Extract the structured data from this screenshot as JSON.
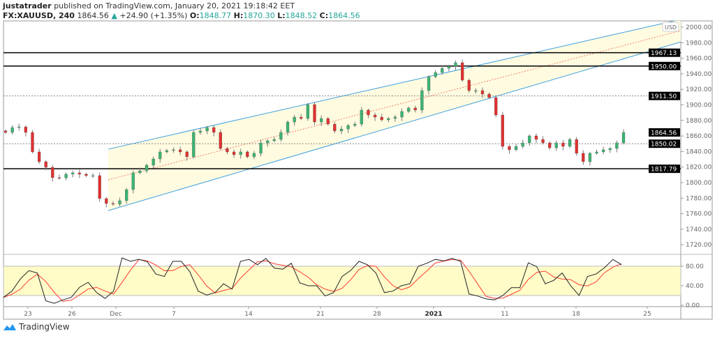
{
  "header": {
    "publisher": "justatrader",
    "published_text": "published on TradingView.com, January 20, 2021 19:18:42 EET",
    "symbol": "FX:XAUUSD, 240",
    "last": "1864.56",
    "change": "+24.90 (+1.35%)",
    "open_label": "O:",
    "open": "1848.77",
    "high_label": "H:",
    "high": "1870.30",
    "low_label": "L:",
    "low": "1848.52",
    "close_label": "C:",
    "close": "1864.56",
    "change_icon": "triangle-up-icon"
  },
  "footer": {
    "brand": "TradingView",
    "logo_icon": "tradingview-cloud-icon"
  },
  "colors": {
    "up": "#26a69a",
    "candle_up": "#3cb371",
    "candle_down": "#e0312f",
    "channel": "#3c9fe0",
    "channel_fill": "#fffbe0",
    "stoch_k": "#222222",
    "stoch_d": "#ff3b2f",
    "band": "#fffcc8"
  },
  "chart_data": {
    "type": "candlestick",
    "currency_label": "USD",
    "price_ylim": [
      1700,
      2005
    ],
    "price_ticks": [
      "2000.00",
      "1980.00",
      "1960.00",
      "1940.00",
      "1920.00",
      "1900.00",
      "1880.00",
      "1860.00",
      "1840.00",
      "1820.00",
      "1800.00",
      "1780.00",
      "1760.00",
      "1740.00",
      "1720.00"
    ],
    "x_ticks": [
      {
        "label": "23",
        "bold": false
      },
      {
        "label": "26",
        "bold": false
      },
      {
        "label": "Dec",
        "bold": false
      },
      {
        "label": "7",
        "bold": false
      },
      {
        "label": "14",
        "bold": false
      },
      {
        "label": "21",
        "bold": false
      },
      {
        "label": "28",
        "bold": false
      },
      {
        "label": "2021",
        "bold": true
      },
      {
        "label": "11",
        "bold": false
      },
      {
        "label": "18",
        "bold": false
      },
      {
        "label": "25",
        "bold": false
      }
    ],
    "closes": [
      1864.6,
      1870.9,
      1871.7,
      1864.6,
      1839.5,
      1826.9,
      1819.7,
      1806.3,
      1806,
      1810.8,
      1812.6,
      1810.8,
      1809,
      1809,
      1779.4,
      1773.1,
      1772.2,
      1776.7,
      1791,
      1812.6,
      1815.2,
      1822.4,
      1830.5,
      1839.5,
      1841.3,
      1842.2,
      1839.5,
      1833.2,
      1864.6,
      1866.4,
      1870.9,
      1864.6,
      1843.9,
      1839.5,
      1835.9,
      1839.5,
      1833.2,
      1837.7,
      1851.1,
      1853.8,
      1855.6,
      1864.6,
      1878,
      1884.3,
      1882.5,
      1900.4,
      1878,
      1882.5,
      1875.3,
      1866.4,
      1869,
      1873.5,
      1875.3,
      1893.3,
      1887,
      1884.3,
      1880.7,
      1882.5,
      1884.3,
      1891.5,
      1896,
      1893.3,
      1918.4,
      1936.3,
      1941.7,
      1947.1,
      1949.8,
      1954.3,
      1931.8,
      1918.4,
      1918.4,
      1913.9,
      1909.4,
      1887,
      1846.6,
      1842.2,
      1846.6,
      1851.1,
      1860.1,
      1855.6,
      1851.1,
      1844.8,
      1851.1,
      1846.6,
      1855.6,
      1837.7,
      1826.9,
      1837.7,
      1839.5,
      1842.2,
      1843.9,
      1851.1,
      1864.56
    ],
    "horizontal_levels": [
      {
        "price": 1967.13,
        "label": "1967.13",
        "style": "solid"
      },
      {
        "price": 1950.0,
        "label": "1950.00",
        "style": "solid"
      },
      {
        "price": 1911.5,
        "label": "1911.50",
        "style": "dotted"
      },
      {
        "price": 1864.56,
        "label": "1864.56",
        "style": "none"
      },
      {
        "price": 1850.02,
        "label": "1850.02",
        "style": "dotted"
      },
      {
        "price": 1817.79,
        "label": "1817.79",
        "style": "solid"
      }
    ],
    "channel": {
      "upper_start": 1843,
      "lower_start": 1764,
      "upper_end": 2010,
      "lower_end": 1981
    },
    "stochastic": {
      "ylim": [
        0,
        100
      ],
      "ticks": [
        "80.00",
        "40.00",
        "0.00"
      ],
      "band": [
        20,
        80
      ],
      "k": [
        16,
        29,
        54,
        71,
        66,
        9,
        4,
        11,
        16,
        37,
        47,
        26,
        14,
        29,
        97,
        90,
        94,
        89,
        64,
        59,
        90,
        90,
        69,
        29,
        21,
        26,
        44,
        33,
        90,
        94,
        83,
        96,
        76,
        74,
        86,
        46,
        40,
        40,
        19,
        26,
        59,
        71,
        90,
        83,
        66,
        26,
        29,
        40,
        44,
        80,
        86,
        94,
        91,
        96,
        90,
        23,
        19,
        13,
        11,
        20,
        36,
        36,
        87,
        79,
        44,
        51,
        66,
        40,
        20,
        59,
        64,
        77,
        94,
        83
      ]
    }
  }
}
